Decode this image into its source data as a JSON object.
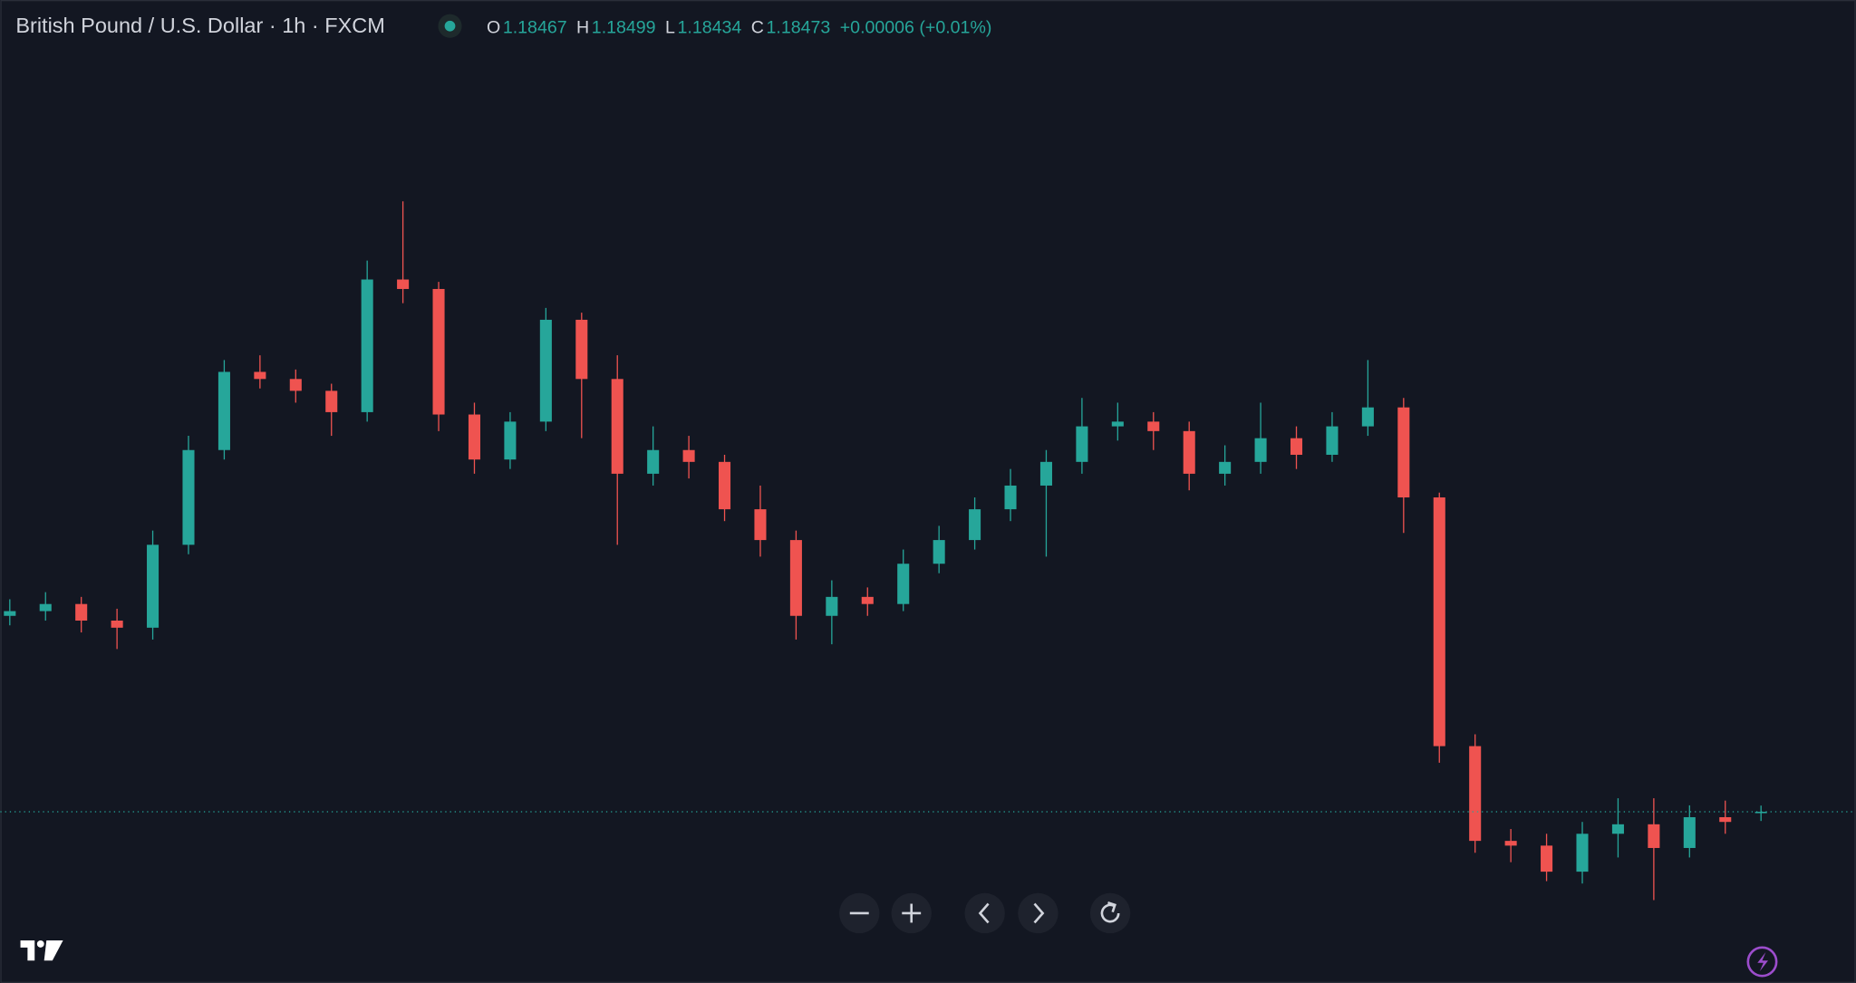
{
  "header": {
    "title": "British Pound / U.S. Dollar · 1h · FXCM",
    "ohlc": [
      {
        "label": "O",
        "value": "1.18467"
      },
      {
        "label": "H",
        "value": "1.18499"
      },
      {
        "label": "L",
        "value": "1.18434"
      },
      {
        "label": "C",
        "value": "1.18473"
      }
    ],
    "change": "+0.00006 (+0.01%)"
  },
  "chart_data": {
    "type": "candlestick",
    "up_color": "#26a69a",
    "down_color": "#ef5350",
    "ylim": [
      1.1775,
      1.219
    ],
    "open": [
      1.193,
      1.1932,
      1.1935,
      1.1928,
      1.1925,
      1.196,
      1.2,
      1.2033,
      1.203,
      1.2025,
      1.2016,
      1.2072,
      1.2068,
      1.2015,
      1.1996,
      1.2012,
      1.2055,
      1.203,
      1.199,
      1.2,
      1.1995,
      1.1975,
      1.1962,
      1.193,
      1.1938,
      1.1935,
      1.1952,
      1.1962,
      1.1975,
      1.1985,
      1.1995,
      1.201,
      1.2012,
      1.2008,
      1.199,
      1.1995,
      1.2005,
      1.1998,
      1.201,
      1.2018,
      1.198,
      1.1875,
      1.1835,
      1.1833,
      1.1822,
      1.1838,
      1.1842,
      1.1832,
      1.1845,
      1.18467
    ],
    "high": [
      1.1937,
      1.194,
      1.1938,
      1.1933,
      1.1966,
      1.2006,
      1.2038,
      1.204,
      1.2034,
      1.2028,
      1.208,
      1.2105,
      1.2071,
      1.202,
      1.2016,
      1.206,
      1.2058,
      1.204,
      1.201,
      1.2006,
      1.1998,
      1.1985,
      1.1966,
      1.1945,
      1.1942,
      1.1958,
      1.1968,
      1.198,
      1.1992,
      1.2,
      1.2022,
      1.202,
      1.2016,
      1.2012,
      1.2002,
      1.202,
      1.201,
      1.2016,
      1.2038,
      1.2022,
      1.1982,
      1.188,
      1.184,
      1.1838,
      1.1843,
      1.1853,
      1.1853,
      1.185,
      1.1852,
      1.18499
    ],
    "low": [
      1.1926,
      1.1928,
      1.1923,
      1.1916,
      1.192,
      1.1956,
      1.1996,
      1.2026,
      1.202,
      1.2006,
      1.2012,
      1.2062,
      1.2008,
      1.199,
      1.1992,
      1.2008,
      1.2005,
      1.196,
      1.1985,
      1.1988,
      1.197,
      1.1955,
      1.192,
      1.1918,
      1.193,
      1.1932,
      1.1948,
      1.1958,
      1.197,
      1.1955,
      1.199,
      1.2004,
      1.2,
      1.1983,
      1.1985,
      1.199,
      1.1992,
      1.1995,
      1.2006,
      1.1965,
      1.1868,
      1.183,
      1.1826,
      1.1818,
      1.1817,
      1.1828,
      1.181,
      1.1828,
      1.1838,
      1.18434
    ],
    "close": [
      1.1932,
      1.1935,
      1.1928,
      1.1925,
      1.196,
      1.2,
      1.2033,
      1.203,
      1.2025,
      1.2016,
      1.2072,
      1.2068,
      1.2015,
      1.1996,
      1.2012,
      1.2055,
      1.203,
      1.199,
      1.2,
      1.1995,
      1.1975,
      1.1962,
      1.193,
      1.1938,
      1.1935,
      1.1952,
      1.1962,
      1.1975,
      1.1985,
      1.1995,
      1.201,
      1.2012,
      1.2008,
      1.199,
      1.1995,
      1.2005,
      1.1998,
      1.201,
      1.2018,
      1.198,
      1.1875,
      1.1835,
      1.1833,
      1.1822,
      1.1838,
      1.1842,
      1.1832,
      1.1845,
      1.1843,
      1.18473
    ]
  }
}
